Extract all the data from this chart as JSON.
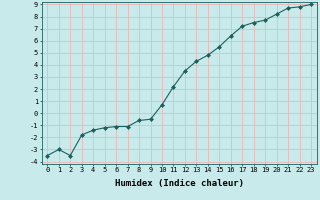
{
  "x": [
    0,
    1,
    2,
    3,
    4,
    5,
    6,
    7,
    8,
    9,
    10,
    11,
    12,
    13,
    14,
    15,
    16,
    17,
    18,
    19,
    20,
    21,
    22,
    23
  ],
  "y": [
    -3.5,
    -3.0,
    -3.5,
    -1.8,
    -1.4,
    -1.2,
    -1.1,
    -1.1,
    -0.6,
    -0.5,
    0.7,
    2.2,
    3.5,
    4.3,
    4.8,
    5.5,
    6.4,
    7.2,
    7.5,
    7.7,
    8.2,
    8.7,
    8.8,
    9.0
  ],
  "xlabel": "Humidex (Indice chaleur)",
  "ylim": [
    -4,
    9
  ],
  "xlim": [
    -0.5,
    23.5
  ],
  "bg_color": "#c8eaea",
  "grid_color": "#e8b8b8",
  "line_color": "#1a6060",
  "marker": "D",
  "marker_size": 2,
  "yticks": [
    -4,
    -3,
    -2,
    -1,
    0,
    1,
    2,
    3,
    4,
    5,
    6,
    7,
    8,
    9
  ],
  "xticks": [
    0,
    1,
    2,
    3,
    4,
    5,
    6,
    7,
    8,
    9,
    10,
    11,
    12,
    13,
    14,
    15,
    16,
    17,
    18,
    19,
    20,
    21,
    22,
    23
  ],
  "xlabel_fontsize": 6.5,
  "tick_fontsize": 5.0
}
